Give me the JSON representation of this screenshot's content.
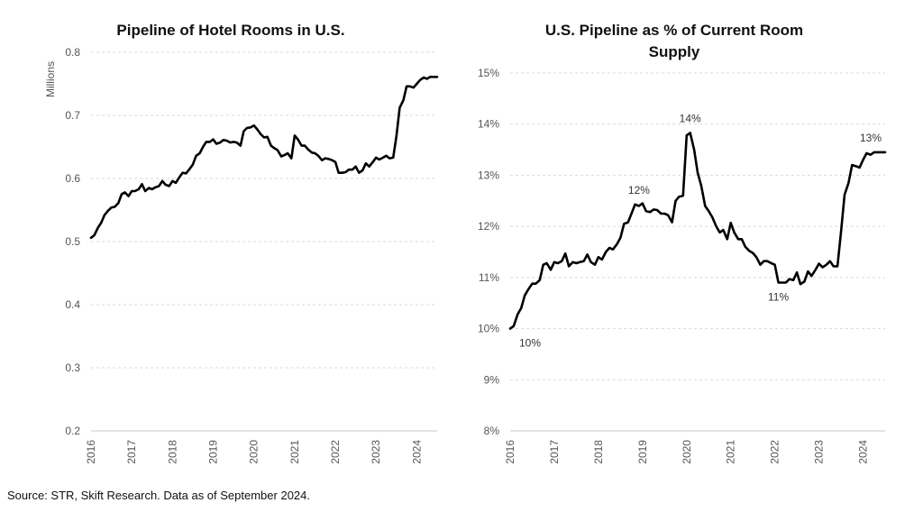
{
  "source": "Source: STR, Skift Research. Data as of September 2024.",
  "colors": {
    "line": "#000000",
    "grid": "#d9d9d9",
    "text": "#111111"
  },
  "chart_data": [
    {
      "type": "line",
      "title_lines": [
        "Pipeline of Hotel Rooms in U.S."
      ],
      "ylabel": "Millions",
      "xlabel": "",
      "xlim": [
        2016,
        2024.5
      ],
      "ylim": [
        0.2,
        0.8
      ],
      "yticks": [
        0.2,
        0.3,
        0.4,
        0.5,
        0.6,
        0.7,
        0.8
      ],
      "ytick_labels": [
        "0.2",
        "0.3",
        "0.4",
        "0.5",
        "0.6",
        "0.7",
        "0.8"
      ],
      "xticks": [
        2016,
        2017,
        2018,
        2019,
        2020,
        2021,
        2022,
        2023,
        2024
      ],
      "xtick_labels": [
        "2016",
        "2017",
        "2018",
        "2019",
        "2020",
        "2021",
        "2022",
        "2023",
        "2024"
      ],
      "grid": true,
      "legend": "none",
      "annotations": [],
      "series": [
        {
          "values": [
            [
              2016.0,
              0.506
            ],
            [
              2016.08,
              0.51
            ],
            [
              2016.17,
              0.522
            ],
            [
              2016.25,
              0.53
            ],
            [
              2016.33,
              0.542
            ],
            [
              2016.42,
              0.549
            ],
            [
              2016.5,
              0.554
            ],
            [
              2016.58,
              0.555
            ],
            [
              2016.67,
              0.561
            ],
            [
              2016.75,
              0.575
            ],
            [
              2016.83,
              0.578
            ],
            [
              2016.92,
              0.572
            ],
            [
              2017.0,
              0.58
            ],
            [
              2017.08,
              0.58
            ],
            [
              2017.17,
              0.583
            ],
            [
              2017.25,
              0.591
            ],
            [
              2017.33,
              0.58
            ],
            [
              2017.42,
              0.585
            ],
            [
              2017.5,
              0.583
            ],
            [
              2017.58,
              0.586
            ],
            [
              2017.67,
              0.588
            ],
            [
              2017.75,
              0.596
            ],
            [
              2017.83,
              0.59
            ],
            [
              2017.92,
              0.588
            ],
            [
              2018.0,
              0.596
            ],
            [
              2018.08,
              0.593
            ],
            [
              2018.17,
              0.602
            ],
            [
              2018.25,
              0.609
            ],
            [
              2018.33,
              0.608
            ],
            [
              2018.42,
              0.615
            ],
            [
              2018.5,
              0.622
            ],
            [
              2018.58,
              0.636
            ],
            [
              2018.67,
              0.64
            ],
            [
              2018.75,
              0.65
            ],
            [
              2018.83,
              0.658
            ],
            [
              2018.92,
              0.658
            ],
            [
              2019.0,
              0.662
            ],
            [
              2019.08,
              0.655
            ],
            [
              2019.17,
              0.657
            ],
            [
              2019.25,
              0.661
            ],
            [
              2019.33,
              0.66
            ],
            [
              2019.42,
              0.657
            ],
            [
              2019.5,
              0.658
            ],
            [
              2019.58,
              0.657
            ],
            [
              2019.67,
              0.652
            ],
            [
              2019.75,
              0.675
            ],
            [
              2019.83,
              0.68
            ],
            [
              2019.92,
              0.681
            ],
            [
              2020.0,
              0.684
            ],
            [
              2020.08,
              0.678
            ],
            [
              2020.17,
              0.67
            ],
            [
              2020.25,
              0.665
            ],
            [
              2020.33,
              0.666
            ],
            [
              2020.42,
              0.652
            ],
            [
              2020.5,
              0.648
            ],
            [
              2020.58,
              0.645
            ],
            [
              2020.67,
              0.635
            ],
            [
              2020.75,
              0.637
            ],
            [
              2020.83,
              0.64
            ],
            [
              2020.92,
              0.632
            ],
            [
              2021.0,
              0.668
            ],
            [
              2021.08,
              0.662
            ],
            [
              2021.17,
              0.652
            ],
            [
              2021.25,
              0.652
            ],
            [
              2021.33,
              0.646
            ],
            [
              2021.42,
              0.641
            ],
            [
              2021.5,
              0.64
            ],
            [
              2021.58,
              0.636
            ],
            [
              2021.67,
              0.629
            ],
            [
              2021.75,
              0.632
            ],
            [
              2021.83,
              0.631
            ],
            [
              2021.92,
              0.629
            ],
            [
              2022.0,
              0.626
            ],
            [
              2022.08,
              0.609
            ],
            [
              2022.17,
              0.609
            ],
            [
              2022.25,
              0.61
            ],
            [
              2022.33,
              0.614
            ],
            [
              2022.42,
              0.614
            ],
            [
              2022.5,
              0.619
            ],
            [
              2022.58,
              0.609
            ],
            [
              2022.67,
              0.613
            ],
            [
              2022.75,
              0.624
            ],
            [
              2022.83,
              0.619
            ],
            [
              2022.92,
              0.626
            ],
            [
              2023.0,
              0.633
            ],
            [
              2023.08,
              0.63
            ],
            [
              2023.17,
              0.633
            ],
            [
              2023.25,
              0.636
            ],
            [
              2023.33,
              0.632
            ],
            [
              2023.42,
              0.633
            ],
            [
              2023.5,
              0.667
            ],
            [
              2023.58,
              0.712
            ],
            [
              2023.67,
              0.724
            ],
            [
              2023.75,
              0.746
            ],
            [
              2023.83,
              0.746
            ],
            [
              2023.92,
              0.744
            ],
            [
              2024.0,
              0.75
            ],
            [
              2024.08,
              0.756
            ],
            [
              2024.17,
              0.76
            ],
            [
              2024.25,
              0.758
            ],
            [
              2024.33,
              0.761
            ],
            [
              2024.42,
              0.761
            ],
            [
              2024.5,
              0.761
            ]
          ]
        }
      ]
    },
    {
      "type": "line",
      "title_lines": [
        "U.S. Pipeline as % of Current Room",
        "Supply"
      ],
      "ylabel": "",
      "xlabel": "",
      "xlim": [
        2016,
        2024.5
      ],
      "ylim": [
        8,
        15
      ],
      "yticks": [
        8,
        9,
        10,
        11,
        12,
        13,
        14,
        15
      ],
      "ytick_labels": [
        "8%",
        "9%",
        "10%",
        "11%",
        "12%",
        "13%",
        "14%",
        "15%"
      ],
      "xticks": [
        2016,
        2017,
        2018,
        2019,
        2020,
        2021,
        2022,
        2023,
        2024
      ],
      "xtick_labels": [
        "2016",
        "2017",
        "2018",
        "2019",
        "2020",
        "2021",
        "2022",
        "2023",
        "2024"
      ],
      "grid": true,
      "legend": "none",
      "annotations": [
        {
          "text": "10%",
          "x": 2016.0,
          "y": 10.0,
          "position": "below-right"
        },
        {
          "text": "12%",
          "x": 2018.92,
          "y": 12.43,
          "position": "above"
        },
        {
          "text": "14%",
          "x": 2020.08,
          "y": 13.83,
          "position": "above"
        },
        {
          "text": "11%",
          "x": 2022.08,
          "y": 10.9,
          "position": "below"
        },
        {
          "text": "13%",
          "x": 2024.5,
          "y": 13.45,
          "position": "above-left"
        }
      ],
      "series": [
        {
          "values": [
            [
              2016.0,
              10.0
            ],
            [
              2016.08,
              10.05
            ],
            [
              2016.17,
              10.28
            ],
            [
              2016.25,
              10.4
            ],
            [
              2016.33,
              10.65
            ],
            [
              2016.42,
              10.78
            ],
            [
              2016.5,
              10.88
            ],
            [
              2016.58,
              10.88
            ],
            [
              2016.67,
              10.95
            ],
            [
              2016.75,
              11.25
            ],
            [
              2016.83,
              11.28
            ],
            [
              2016.92,
              11.15
            ],
            [
              2017.0,
              11.3
            ],
            [
              2017.08,
              11.28
            ],
            [
              2017.17,
              11.32
            ],
            [
              2017.25,
              11.47
            ],
            [
              2017.33,
              11.22
            ],
            [
              2017.42,
              11.3
            ],
            [
              2017.5,
              11.28
            ],
            [
              2017.58,
              11.3
            ],
            [
              2017.67,
              11.32
            ],
            [
              2017.75,
              11.45
            ],
            [
              2017.83,
              11.3
            ],
            [
              2017.92,
              11.25
            ],
            [
              2018.0,
              11.4
            ],
            [
              2018.08,
              11.35
            ],
            [
              2018.17,
              11.5
            ],
            [
              2018.25,
              11.58
            ],
            [
              2018.33,
              11.55
            ],
            [
              2018.42,
              11.65
            ],
            [
              2018.5,
              11.78
            ],
            [
              2018.58,
              12.05
            ],
            [
              2018.67,
              12.08
            ],
            [
              2018.75,
              12.25
            ],
            [
              2018.83,
              12.43
            ],
            [
              2018.92,
              12.4
            ],
            [
              2019.0,
              12.45
            ],
            [
              2019.08,
              12.3
            ],
            [
              2019.17,
              12.28
            ],
            [
              2019.25,
              12.33
            ],
            [
              2019.33,
              12.32
            ],
            [
              2019.42,
              12.25
            ],
            [
              2019.5,
              12.25
            ],
            [
              2019.58,
              12.22
            ],
            [
              2019.67,
              12.08
            ],
            [
              2019.75,
              12.5
            ],
            [
              2019.83,
              12.58
            ],
            [
              2019.92,
              12.6
            ],
            [
              2020.0,
              13.78
            ],
            [
              2020.08,
              13.83
            ],
            [
              2020.17,
              13.5
            ],
            [
              2020.25,
              13.05
            ],
            [
              2020.33,
              12.8
            ],
            [
              2020.42,
              12.4
            ],
            [
              2020.5,
              12.3
            ],
            [
              2020.58,
              12.18
            ],
            [
              2020.67,
              12.0
            ],
            [
              2020.75,
              11.88
            ],
            [
              2020.83,
              11.93
            ],
            [
              2020.92,
              11.75
            ],
            [
              2021.0,
              12.07
            ],
            [
              2021.08,
              11.88
            ],
            [
              2021.17,
              11.75
            ],
            [
              2021.25,
              11.75
            ],
            [
              2021.33,
              11.6
            ],
            [
              2021.42,
              11.52
            ],
            [
              2021.5,
              11.48
            ],
            [
              2021.58,
              11.4
            ],
            [
              2021.67,
              11.25
            ],
            [
              2021.75,
              11.32
            ],
            [
              2021.83,
              11.32
            ],
            [
              2021.92,
              11.28
            ],
            [
              2022.0,
              11.25
            ],
            [
              2022.08,
              10.9
            ],
            [
              2022.17,
              10.9
            ],
            [
              2022.25,
              10.9
            ],
            [
              2022.33,
              10.97
            ],
            [
              2022.42,
              10.95
            ],
            [
              2022.5,
              11.1
            ],
            [
              2022.58,
              10.87
            ],
            [
              2022.67,
              10.92
            ],
            [
              2022.75,
              11.12
            ],
            [
              2022.83,
              11.03
            ],
            [
              2022.92,
              11.15
            ],
            [
              2023.0,
              11.27
            ],
            [
              2023.08,
              11.2
            ],
            [
              2023.17,
              11.25
            ],
            [
              2023.25,
              11.32
            ],
            [
              2023.33,
              11.22
            ],
            [
              2023.42,
              11.22
            ],
            [
              2023.5,
              11.9
            ],
            [
              2023.58,
              12.62
            ],
            [
              2023.67,
              12.85
            ],
            [
              2023.75,
              13.2
            ],
            [
              2023.83,
              13.18
            ],
            [
              2023.92,
              13.15
            ],
            [
              2024.0,
              13.3
            ],
            [
              2024.08,
              13.43
            ],
            [
              2024.17,
              13.4
            ],
            [
              2024.25,
              13.45
            ],
            [
              2024.33,
              13.45
            ],
            [
              2024.42,
              13.45
            ],
            [
              2024.5,
              13.45
            ]
          ]
        }
      ]
    }
  ]
}
